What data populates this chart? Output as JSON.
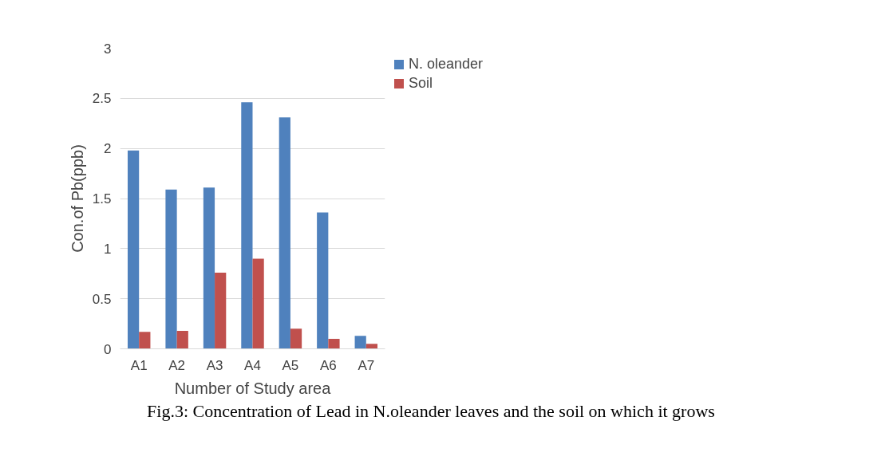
{
  "chart_data": {
    "type": "bar",
    "xlabel": "Number of Study area",
    "ylabel": "Con.of Pb(ppb)",
    "categories": [
      "A1",
      "A2",
      "A3",
      "A4",
      "A5",
      "A6",
      "A7"
    ],
    "series": [
      {
        "name": "N. oleander",
        "color": "#4f81bd",
        "values": [
          1.98,
          1.59,
          1.61,
          2.46,
          2.31,
          1.36,
          0.13
        ]
      },
      {
        "name": "Soil",
        "color": "#c0504d",
        "values": [
          0.17,
          0.18,
          0.76,
          0.9,
          0.2,
          0.1,
          0.05
        ]
      }
    ],
    "ylim": [
      0,
      3
    ],
    "yticks": [
      0,
      0.5,
      1,
      1.5,
      2,
      2.5,
      3
    ],
    "grid": "y",
    "legend": "right",
    "annotations": [
      "Fig.3: Concentration of Lead in N.oleander leaves and the soil on which it grows"
    ]
  }
}
